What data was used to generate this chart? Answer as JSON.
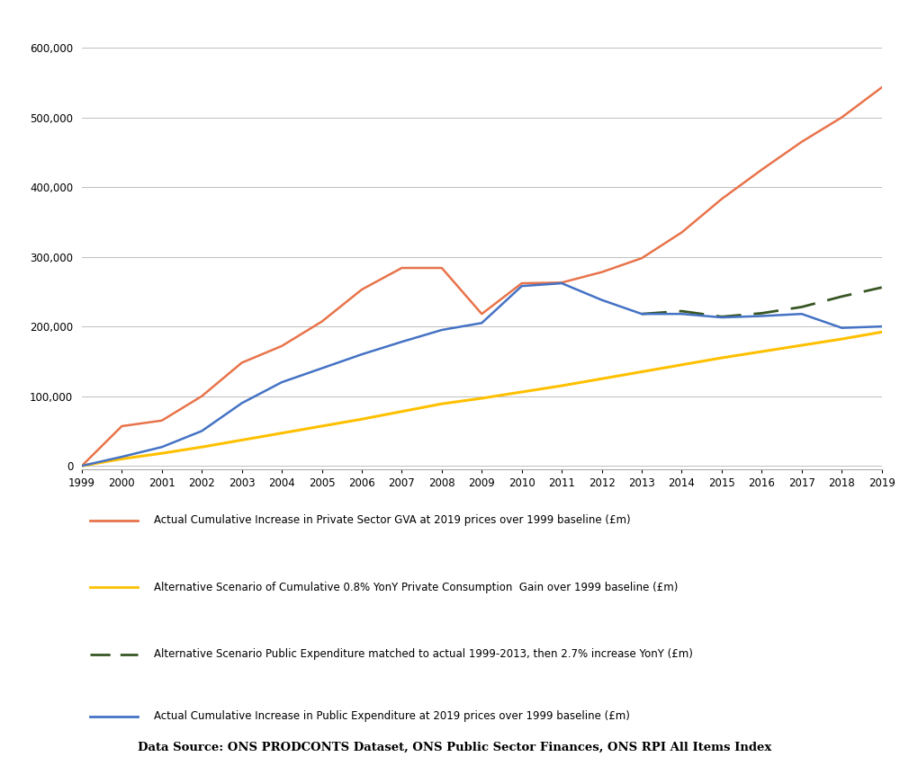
{
  "years": [
    1999,
    2000,
    2001,
    2002,
    2003,
    2004,
    2005,
    2006,
    2007,
    2008,
    2009,
    2010,
    2011,
    2012,
    2013,
    2014,
    2015,
    2016,
    2017,
    2018,
    2019
  ],
  "orange_line": [
    0,
    57000,
    65000,
    100000,
    148000,
    172000,
    207000,
    253000,
    284000,
    284000,
    218000,
    262000,
    263000,
    278000,
    298000,
    335000,
    383000,
    425000,
    465000,
    500000,
    543000
  ],
  "yellow_line": [
    0,
    10000,
    18000,
    27000,
    37000,
    47000,
    57000,
    67000,
    78000,
    89000,
    97000,
    106000,
    115000,
    125000,
    135000,
    145000,
    155000,
    164000,
    173000,
    182000,
    192000
  ],
  "green_dashed": [
    null,
    null,
    null,
    null,
    null,
    null,
    null,
    null,
    null,
    null,
    null,
    null,
    null,
    null,
    218000,
    222000,
    214000,
    219000,
    228000,
    243000,
    256000
  ],
  "blue_line": [
    0,
    13000,
    27000,
    50000,
    90000,
    120000,
    140000,
    160000,
    178000,
    195000,
    205000,
    258000,
    262000,
    238000,
    218000,
    218000,
    213000,
    215000,
    218000,
    198000,
    200000
  ],
  "orange_color": "#E8734A",
  "yellow_color": "#FFC000",
  "green_color": "#375623",
  "blue_color": "#4472C4",
  "legend_labels": [
    "Actual Cumulative Increase in Private Sector GVA at 2019 prices over 1999 baseline (£m)",
    "Alternative Scenario of Cumulative 0.8% YonY Private Consumption  Gain over 1999 baseline (£m)",
    "Alternative Scenario Public Expenditure matched to actual 1999-2013, then 2.7% increase YonY (£m)",
    "Actual Cumulative Increase in Public Expenditure at 2019 prices over 1999 baseline (£m)"
  ],
  "yticks": [
    0,
    100000,
    200000,
    300000,
    400000,
    500000,
    600000
  ],
  "ylim": [
    -5000,
    625000
  ],
  "data_source": "Data Source: ONS PRODCONTS Dataset, ONS Public Sector Finances, ONS RPI All Items Index",
  "background_color": "#FFFFFF",
  "grid_color": "#BFBFBF"
}
